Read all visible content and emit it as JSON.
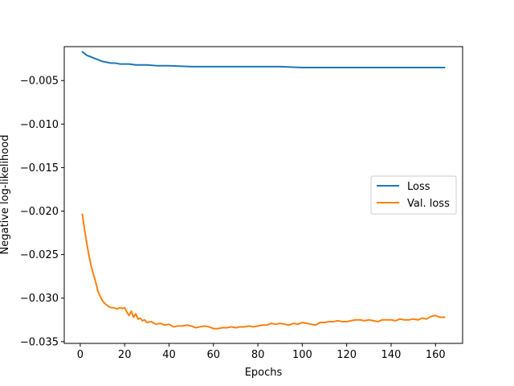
{
  "chart_data": {
    "type": "line",
    "xlabel": "Epochs",
    "ylabel": "Negative log-likelihood",
    "xlim": [
      -7.2,
      172.2
    ],
    "ylim": [
      -0.0352,
      -0.0011
    ],
    "xticks": [
      0,
      20,
      40,
      60,
      80,
      100,
      120,
      140,
      160
    ],
    "yticks": [
      -0.035,
      -0.03,
      -0.025,
      -0.02,
      -0.015,
      -0.01,
      -0.005
    ],
    "ytick_labels": [
      "−0.035",
      "−0.030",
      "−0.025",
      "−0.020",
      "−0.015",
      "−0.010",
      "−0.005"
    ],
    "grid": false,
    "legend": "center-right",
    "series": [
      {
        "name": "Loss",
        "color": "#1f77b4",
        "x": [
          1,
          2,
          3,
          4,
          5,
          6,
          7,
          8,
          9,
          10,
          12,
          14,
          16,
          18,
          20,
          22,
          25,
          30,
          35,
          40,
          50,
          60,
          70,
          80,
          90,
          100,
          110,
          120,
          130,
          140,
          150,
          160,
          164
        ],
        "y": [
          -0.0017,
          -0.0019,
          -0.0021,
          -0.0022,
          -0.0023,
          -0.0024,
          -0.0025,
          -0.0026,
          -0.0027,
          -0.0028,
          -0.0029,
          -0.003,
          -0.003,
          -0.0031,
          -0.0031,
          -0.0031,
          -0.0032,
          -0.0032,
          -0.0033,
          -0.0033,
          -0.0034,
          -0.0034,
          -0.0034,
          -0.0034,
          -0.0034,
          -0.0035,
          -0.0035,
          -0.0035,
          -0.0035,
          -0.0035,
          -0.0035,
          -0.0035,
          -0.0035
        ]
      },
      {
        "name": "Val. loss",
        "color": "#ff7f0e",
        "x": [
          1,
          2,
          3,
          4,
          5,
          6,
          7,
          8,
          9,
          10,
          11,
          12,
          13,
          14,
          15,
          16,
          17,
          18,
          19,
          20,
          21,
          22,
          23,
          24,
          25,
          26,
          27,
          28,
          29,
          30,
          32,
          34,
          36,
          38,
          40,
          42,
          44,
          46,
          48,
          50,
          52,
          54,
          56,
          58,
          60,
          62,
          64,
          66,
          68,
          70,
          72,
          74,
          76,
          78,
          80,
          82,
          84,
          86,
          88,
          90,
          92,
          94,
          96,
          98,
          100,
          102,
          104,
          106,
          108,
          110,
          112,
          114,
          116,
          118,
          120,
          122,
          124,
          126,
          128,
          130,
          132,
          134,
          136,
          138,
          140,
          142,
          144,
          146,
          148,
          150,
          152,
          154,
          156,
          158,
          160,
          162,
          164
        ],
        "y": [
          -0.0204,
          -0.0222,
          -0.0238,
          -0.0252,
          -0.0264,
          -0.0273,
          -0.0282,
          -0.0292,
          -0.0298,
          -0.0303,
          -0.0306,
          -0.0308,
          -0.031,
          -0.0311,
          -0.0311,
          -0.0312,
          -0.0312,
          -0.0311,
          -0.0312,
          -0.0311,
          -0.0316,
          -0.032,
          -0.0315,
          -0.0322,
          -0.0318,
          -0.0324,
          -0.0323,
          -0.0326,
          -0.0325,
          -0.0328,
          -0.0327,
          -0.033,
          -0.0329,
          -0.0331,
          -0.033,
          -0.0333,
          -0.0332,
          -0.0332,
          -0.0331,
          -0.0332,
          -0.0334,
          -0.0333,
          -0.0332,
          -0.0333,
          -0.0335,
          -0.0335,
          -0.0334,
          -0.0334,
          -0.0333,
          -0.0334,
          -0.0333,
          -0.0333,
          -0.0332,
          -0.0333,
          -0.0332,
          -0.0331,
          -0.0331,
          -0.0329,
          -0.033,
          -0.0329,
          -0.033,
          -0.0331,
          -0.0329,
          -0.033,
          -0.0328,
          -0.0329,
          -0.033,
          -0.0331,
          -0.0328,
          -0.0328,
          -0.0327,
          -0.0327,
          -0.0326,
          -0.0327,
          -0.0327,
          -0.0326,
          -0.0325,
          -0.0325,
          -0.0326,
          -0.0325,
          -0.0326,
          -0.0327,
          -0.0325,
          -0.0325,
          -0.0325,
          -0.0326,
          -0.0324,
          -0.0325,
          -0.0325,
          -0.0324,
          -0.0325,
          -0.0323,
          -0.0324,
          -0.0321,
          -0.032,
          -0.0322,
          -0.0322
        ]
      }
    ]
  }
}
